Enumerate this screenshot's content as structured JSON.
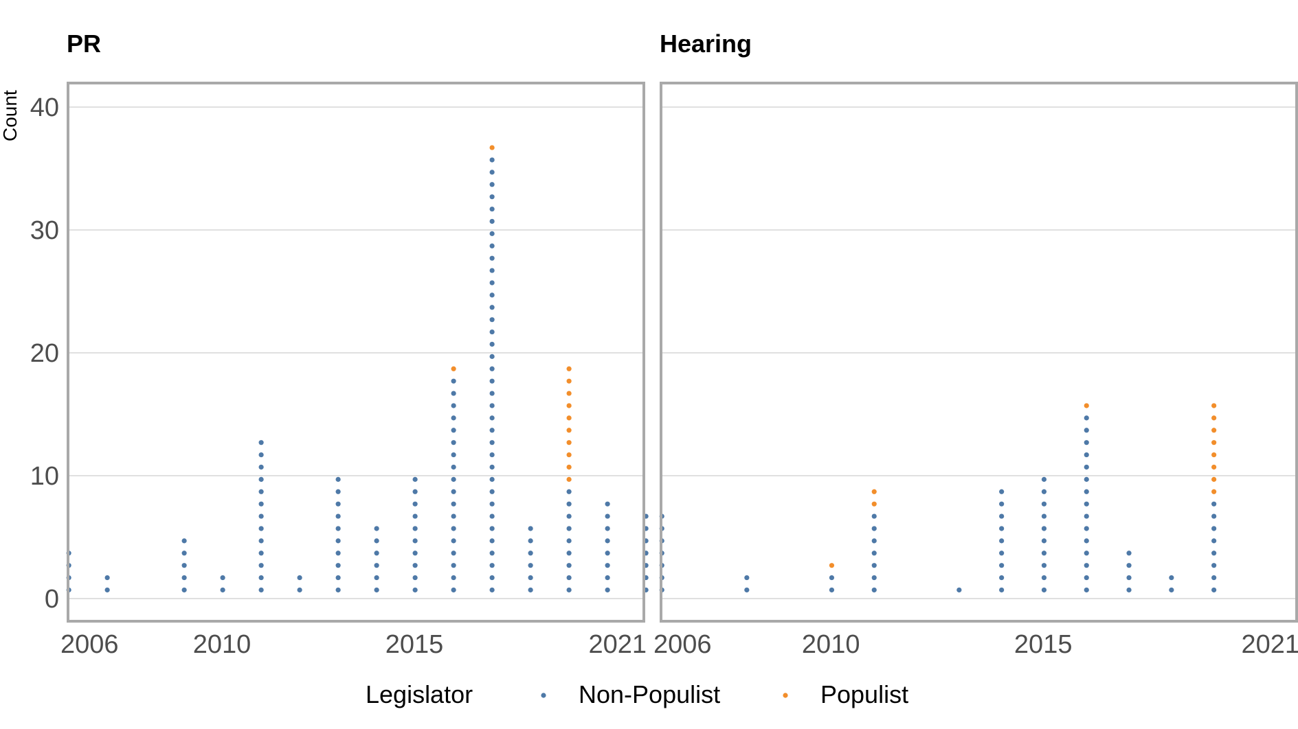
{
  "chart_data": {
    "type": "dotplot",
    "ylabel": "Count",
    "ylim": [
      0,
      40
    ],
    "yticks": [
      0,
      10,
      20,
      30,
      40
    ],
    "xlim": [
      2006,
      2021
    ],
    "xticks": [
      2006,
      2010,
      2015,
      2021
    ],
    "legend": {
      "title": "Legislator",
      "position": "bottom",
      "entries": [
        {
          "name": "Non-Populist",
          "color": "#4e79a7"
        },
        {
          "name": "Populist",
          "color": "#f28e2b"
        }
      ]
    },
    "panels": [
      {
        "title": "PR",
        "series": [
          {
            "name": "Non-Populist",
            "x": [
              2006,
              2007,
              2009,
              2010,
              2011,
              2012,
              2013,
              2014,
              2015,
              2016,
              2017,
              2018,
              2019,
              2020,
              2021
            ],
            "values": [
              4,
              2,
              5,
              2,
              13,
              2,
              10,
              6,
              10,
              18,
              36,
              6,
              9,
              8,
              7
            ]
          },
          {
            "name": "Populist",
            "x": [
              2006,
              2007,
              2009,
              2010,
              2011,
              2012,
              2013,
              2014,
              2015,
              2016,
              2017,
              2018,
              2019,
              2020,
              2021
            ],
            "values": [
              0,
              0,
              0,
              0,
              0,
              0,
              0,
              0,
              0,
              1,
              1,
              0,
              10,
              0,
              0
            ]
          }
        ]
      },
      {
        "title": "Hearing",
        "series": [
          {
            "name": "Non-Populist",
            "x": [
              2006,
              2008,
              2010,
              2011,
              2013,
              2014,
              2015,
              2016,
              2017,
              2018,
              2019
            ],
            "values": [
              7,
              2,
              2,
              7,
              1,
              9,
              10,
              15,
              4,
              2,
              8
            ]
          },
          {
            "name": "Populist",
            "x": [
              2006,
              2008,
              2010,
              2011,
              2013,
              2014,
              2015,
              2016,
              2017,
              2018,
              2019
            ],
            "values": [
              0,
              0,
              1,
              2,
              0,
              0,
              0,
              1,
              0,
              0,
              8
            ]
          }
        ]
      }
    ]
  }
}
